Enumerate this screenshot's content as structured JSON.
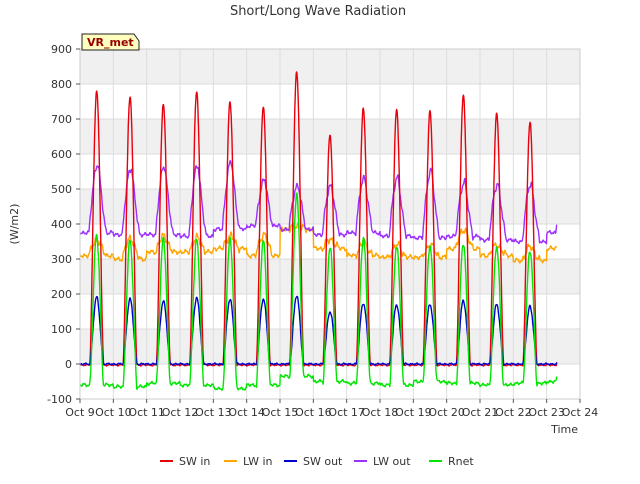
{
  "chart_data": {
    "type": "line",
    "title": "Short/Long Wave Radiation",
    "xlabel": "Time",
    "ylabel": "(W/m2)",
    "site_label": "VR_met",
    "ylim": [
      -100,
      900
    ],
    "yticks": [
      -100,
      0,
      100,
      200,
      300,
      400,
      500,
      600,
      700,
      800,
      900
    ],
    "xlim": [
      9,
      24
    ],
    "xticks": [
      9,
      10,
      11,
      12,
      13,
      14,
      15,
      16,
      17,
      18,
      19,
      20,
      21,
      22,
      23,
      24
    ],
    "xtick_labels": [
      "Oct 9",
      "Oct 10",
      "Oct 11",
      "Oct 12",
      "Oct 13",
      "Oct 14",
      "Oct 15",
      "Oct 16",
      "Oct 17",
      "Oct 18",
      "Oct 19",
      "Oct 20",
      "Oct 21",
      "Oct 22",
      "Oct 23",
      "Oct 24"
    ],
    "grid": true,
    "band_background": true,
    "legend_position": "bottom-center",
    "data_start": 9.0,
    "data_end": 23.3,
    "days": [
      9,
      10,
      11,
      12,
      13,
      14,
      15,
      16,
      17,
      18,
      19,
      20,
      21,
      22,
      23
    ],
    "series": [
      {
        "name": "SW in",
        "color": "#e8000b",
        "night": [
          -3,
          -3,
          -3,
          -3,
          -3,
          -3,
          -3,
          -3,
          -3,
          -3,
          -3,
          -3,
          -3,
          -3,
          -3
        ],
        "peak": [
          780,
          765,
          745,
          780,
          750,
          735,
          835,
          655,
          730,
          725,
          720,
          765,
          715,
          690,
          690
        ]
      },
      {
        "name": "LW in",
        "color": "#ffa500",
        "night": [
          310,
          300,
          320,
          320,
          330,
          310,
          385,
          330,
          310,
          305,
          305,
          330,
          310,
          295,
          330
        ],
        "peak": [
          355,
          360,
          365,
          360,
          365,
          370,
          395,
          355,
          345,
          340,
          340,
          385,
          340,
          335,
          350
        ]
      },
      {
        "name": "SW out",
        "color": "#0000cc",
        "night": [
          0,
          0,
          0,
          0,
          0,
          0,
          0,
          0,
          0,
          0,
          0,
          0,
          0,
          0,
          0
        ],
        "peak": [
          190,
          185,
          180,
          190,
          185,
          185,
          195,
          150,
          175,
          170,
          170,
          180,
          170,
          165,
          165
        ]
      },
      {
        "name": "LW out",
        "color": "#9b30ff",
        "night": [
          375,
          370,
          370,
          365,
          385,
          395,
          385,
          370,
          375,
          365,
          360,
          365,
          355,
          350,
          375
        ],
        "peak": [
          570,
          560,
          565,
          565,
          575,
          525,
          510,
          510,
          530,
          530,
          550,
          520,
          515,
          515,
          515
        ]
      },
      {
        "name": "Rnet",
        "color": "#00e600",
        "night": [
          -60,
          -65,
          -55,
          -60,
          -70,
          -60,
          -35,
          -50,
          -55,
          -60,
          -50,
          -55,
          -60,
          -55,
          -50
        ],
        "peak": [
          365,
          350,
          355,
          355,
          355,
          350,
          480,
          330,
          360,
          340,
          340,
          345,
          335,
          325,
          330
        ]
      }
    ]
  }
}
